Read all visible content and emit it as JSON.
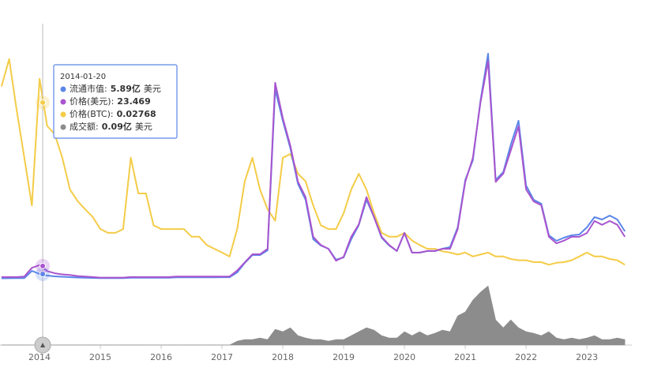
{
  "chart_data": {
    "type": "line",
    "x": [
      2013.375,
      2013.5,
      2013.625,
      2013.75,
      2013.875,
      2014,
      2014.125,
      2014.25,
      2014.375,
      2014.5,
      2014.625,
      2014.75,
      2014.875,
      2015,
      2015.125,
      2015.25,
      2015.375,
      2015.5,
      2015.625,
      2015.75,
      2015.875,
      2016,
      2016.125,
      2016.25,
      2016.375,
      2016.5,
      2016.625,
      2016.75,
      2016.875,
      2017,
      2017.125,
      2017.25,
      2017.375,
      2017.5,
      2017.625,
      2017.75,
      2017.875,
      2018,
      2018.125,
      2018.25,
      2018.375,
      2018.5,
      2018.625,
      2018.75,
      2018.875,
      2019,
      2019.125,
      2019.25,
      2019.375,
      2019.5,
      2019.625,
      2019.75,
      2019.875,
      2020,
      2020.125,
      2020.25,
      2020.375,
      2020.5,
      2020.625,
      2020.75,
      2020.875,
      2021,
      2021.125,
      2021.25,
      2021.375,
      2021.5,
      2021.625,
      2021.75,
      2021.875,
      2022,
      2022.125,
      2022.25,
      2022.375,
      2022.5,
      2022.625,
      2022.75,
      2022.875,
      2023,
      2023.125,
      2023.25,
      2023.375,
      2023.5,
      2023.625
    ],
    "xlim": [
      2013.35,
      2023.7
    ],
    "xticks": [
      2014,
      2015,
      2016,
      2017,
      2018,
      2019,
      2020,
      2021,
      2022,
      2023
    ],
    "series": [
      {
        "color": "#5b86e8",
        "style": "line",
        "ylim": [
          0,
          333
        ],
        "values": [
          0.5,
          0.6,
          0.7,
          0.8,
          10,
          6,
          4,
          3,
          2.5,
          2,
          1.5,
          1.2,
          1,
          0.8,
          0.8,
          0.8,
          0.8,
          1.2,
          1.2,
          1.2,
          1.2,
          1.3,
          1.3,
          1.7,
          1.7,
          1.8,
          1.8,
          1.8,
          1.8,
          1.9,
          1.9,
          8,
          20,
          30,
          30,
          36,
          240,
          200,
          165,
          120,
          100,
          50,
          42,
          38,
          24,
          27,
          50,
          68,
          100,
          78,
          52,
          42,
          35,
          58,
          33,
          33,
          35,
          35,
          38,
          40,
          65,
          125,
          150,
          225,
          285,
          125,
          135,
          170,
          200,
          118,
          100,
          95,
          55,
          48,
          52,
          55,
          56,
          65,
          78,
          75,
          80,
          75,
          60
        ]
      },
      {
        "color": "#a855cf",
        "style": "line",
        "ylim": [
          0,
          483
        ],
        "values": [
          3,
          3,
          3,
          4,
          20,
          25,
          14,
          10,
          8,
          7,
          5,
          4,
          3,
          2,
          2,
          2,
          2,
          3,
          3,
          3,
          3,
          3,
          3,
          4,
          4,
          4,
          4,
          4,
          4,
          4,
          4,
          15,
          30,
          45,
          45,
          55,
          360,
          295,
          244,
          178,
          150,
          77,
          62,
          55,
          33,
          40,
          77,
          100,
          150,
          113,
          77,
          62,
          51,
          84,
          48,
          48,
          51,
          51,
          55,
          55,
          91,
          178,
          222,
          323,
          400,
          178,
          193,
          236,
          280,
          164,
          142,
          135,
          77,
          65,
          70,
          77,
          77,
          84,
          106,
          99,
          106,
          99,
          77
        ]
      },
      {
        "color": "#f4cc47",
        "style": "line",
        "ylim": [
          0,
          0.0413
        ],
        "values": [
          0.0302,
          0.0345,
          0.0264,
          0.019,
          0.0115,
          0.0314,
          0.024,
          0.0227,
          0.019,
          0.014,
          0.0122,
          0.0109,
          0.0097,
          0.0078,
          0.0072,
          0.0072,
          0.0078,
          0.019,
          0.0134,
          0.0134,
          0.0084,
          0.0078,
          0.0078,
          0.0078,
          0.0078,
          0.0066,
          0.0066,
          0.0053,
          0.0047,
          0.0041,
          0.0035,
          0.0078,
          0.0153,
          0.019,
          0.014,
          0.0109,
          0.0091,
          0.019,
          0.0196,
          0.0165,
          0.0153,
          0.0115,
          0.0084,
          0.0078,
          0.0078,
          0.0103,
          0.014,
          0.0165,
          0.014,
          0.0103,
          0.0072,
          0.0066,
          0.0066,
          0.0072,
          0.006,
          0.0053,
          0.0047,
          0.0047,
          0.0043,
          0.0041,
          0.0038,
          0.0041,
          0.0035,
          0.0038,
          0.0041,
          0.0035,
          0.0035,
          0.0031,
          0.0029,
          0.0029,
          0.0026,
          0.0026,
          0.0022,
          0.0025,
          0.0026,
          0.0029,
          0.0035,
          0.0041,
          0.0035,
          0.0035,
          0.0031,
          0.0029,
          0.0022
        ]
      },
      {
        "color": "#8c8c8c",
        "style": "area",
        "ylim": [
          0,
          160
        ],
        "values": [
          0.1,
          0.1,
          0.1,
          0.1,
          0.1,
          0.09,
          0.1,
          0.1,
          0.1,
          0.1,
          0.1,
          0.1,
          0.1,
          0.1,
          0.1,
          0.1,
          0.1,
          0.1,
          0.1,
          0.1,
          0.1,
          0.1,
          0.1,
          0.1,
          0.1,
          0.1,
          0.1,
          0.1,
          0.1,
          0.1,
          0.1,
          10,
          14,
          14,
          18,
          14,
          40,
          34,
          44,
          24,
          18,
          14,
          14,
          10,
          14,
          14,
          24,
          34,
          44,
          38,
          24,
          18,
          18,
          34,
          24,
          34,
          24,
          30,
          38,
          34,
          74,
          84,
          114,
          134,
          150,
          64,
          44,
          64,
          44,
          34,
          30,
          24,
          34,
          18,
          14,
          18,
          14,
          18,
          24,
          14,
          14,
          18,
          14
        ]
      }
    ],
    "tooltip": {
      "date": "2014-01-20",
      "items": [
        {
          "label": "流通市值:",
          "value": 5.89,
          "value_label": "5.89亿",
          "unit": "美元"
        },
        {
          "label": "价格(美元):",
          "value": 23.469,
          "value_label": "23.469"
        },
        {
          "label": "价格(BTC):",
          "value": 0.02768,
          "value_label": "0.02768"
        },
        {
          "label": "成交额:",
          "value": 0.09,
          "value_label": "0.09亿",
          "unit": "美元"
        }
      ]
    }
  }
}
